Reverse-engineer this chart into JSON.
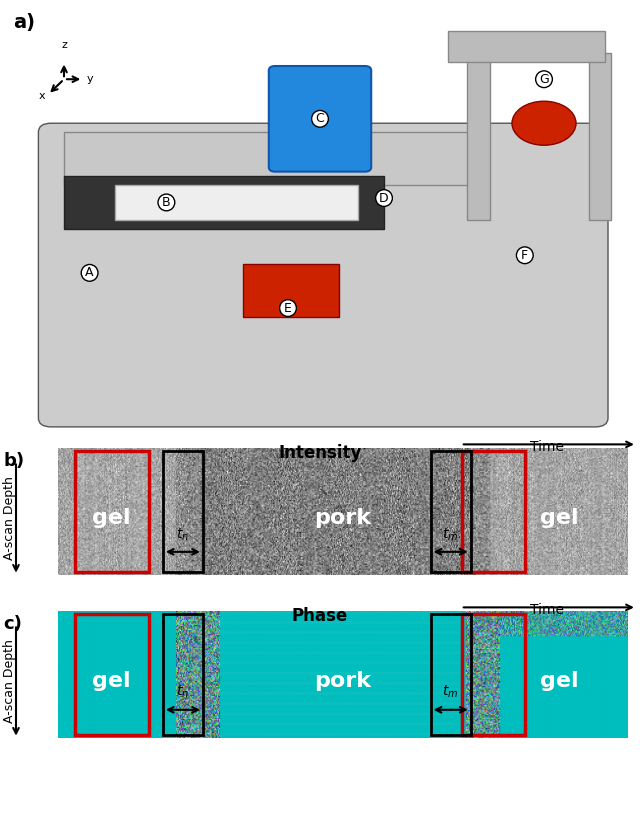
{
  "panel_a_label": "a)",
  "panel_b_label": "b)",
  "panel_c_label": "c)",
  "intensity_title": "Intensity",
  "phase_title": "Phase",
  "time_label": "Time",
  "ascan_label": "A-scan Depth",
  "gel_label": "gel",
  "pork_label": "pork",
  "tn_label": "t_n",
  "tm_label": "t_m",
  "bg_color_intensity": "#888888",
  "bg_color_phase": "#00BEBE",
  "red_box_color": "#CC0000",
  "black_box_color": "#111111",
  "text_color_white": "#FFFFFF",
  "text_color_black": "#000000",
  "fig_bg": "#FFFFFF",
  "teal_color": [
    0,
    190,
    190
  ]
}
